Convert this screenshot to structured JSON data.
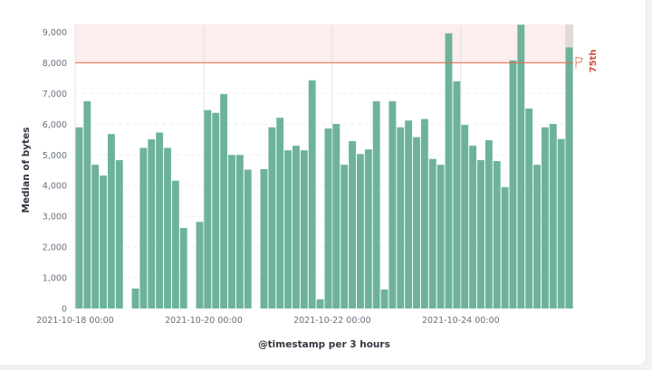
{
  "chart_data": {
    "type": "bar",
    "xlabel": "@timestamp per 3 hours",
    "ylabel": "Median of bytes",
    "ylim": [
      0,
      9250
    ],
    "yticks": [
      0,
      1000,
      2000,
      3000,
      4000,
      5000,
      6000,
      7000,
      8000,
      9000
    ],
    "ytick_labels": [
      "0",
      "1,000",
      "2,000",
      "3,000",
      "4,000",
      "5,000",
      "6,000",
      "7,000",
      "8,000",
      "9,000"
    ],
    "xstart": "2021-10-18 00:00",
    "interval_hours": 3,
    "xtick_labels": [
      "2021-10-18 00:00",
      "2021-10-20 00:00",
      "2021-10-22 00:00",
      "2021-10-24 00:00"
    ],
    "grid": {
      "horizontal": "dashed",
      "vertical": "at x ticks"
    },
    "series": [
      {
        "color": "#6db39a",
        "values": [
          5900,
          6750,
          4680,
          4330,
          5680,
          4830,
          null,
          650,
          5230,
          5510,
          5730,
          5230,
          4160,
          2620,
          null,
          2820,
          6460,
          6370,
          6980,
          5000,
          5000,
          4520,
          null,
          4540,
          5900,
          6210,
          5150,
          5300,
          5150,
          7430,
          300,
          5860,
          6010,
          4680,
          5450,
          5030,
          5180,
          6750,
          620,
          6750,
          5900,
          6120,
          5580,
          6170,
          4870,
          4680,
          8960,
          7400,
          5980,
          5300,
          4830,
          5480,
          4800,
          3950,
          8080,
          9240,
          6510,
          4680,
          5900,
          6010,
          5520,
          8500
        ]
      }
    ],
    "threshold": {
      "value": 8000,
      "label": "75th",
      "color": "#e7664c",
      "band_color": "#fbeeec",
      "icon": "flag-icon"
    }
  }
}
